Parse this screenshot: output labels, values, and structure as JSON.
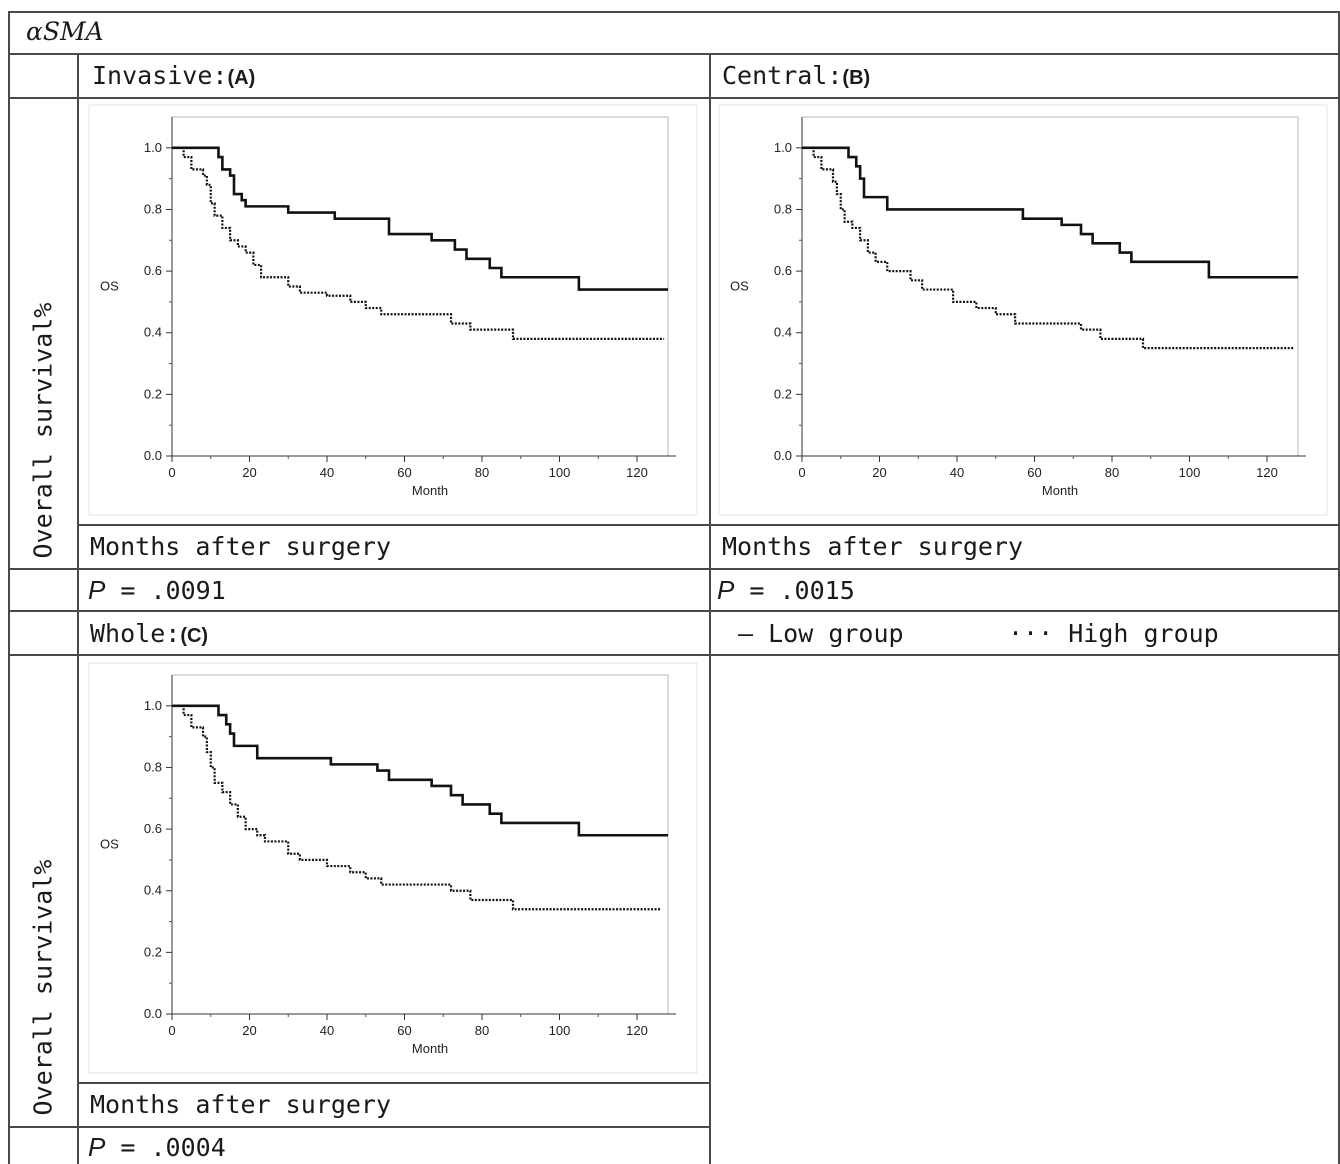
{
  "header": {
    "marker": "αSMA"
  },
  "panels": {
    "a": {
      "region": "Invasive:",
      "letter": "(A)",
      "xcaption": "Months after surgery",
      "p_prefix": "P",
      "p_value": "= .0091"
    },
    "b": {
      "region": "Central:",
      "letter": "(B)",
      "xcaption": "Months after surgery",
      "p_prefix": "P",
      "p_value": "= .0015"
    },
    "c": {
      "region": "Whole:",
      "letter": "(C)",
      "xcaption": "Months after surgery",
      "p_prefix": "P",
      "p_value": "= .0004"
    }
  },
  "row_label": "Overall survival%",
  "legend": {
    "low_symbol": "—",
    "low_label": "Low group",
    "high_symbol": "···",
    "high_label": "High group"
  },
  "chart_data": [
    {
      "type": "line",
      "panel": "A",
      "xlabel": "Month",
      "ylabel": "OS",
      "xlim": [
        0,
        128
      ],
      "ylim": [
        0,
        1.1
      ],
      "xticks": [
        0,
        20,
        40,
        60,
        80,
        100,
        120
      ],
      "yticks": [
        "0.0",
        "0.2",
        "0.4",
        "0.6",
        "0.8",
        "1.0"
      ],
      "series": [
        {
          "style": "solid",
          "values": [
            [
              0,
              1.0
            ],
            [
              11,
              1.0
            ],
            [
              12,
              0.97
            ],
            [
              13,
              0.93
            ],
            [
              15,
              0.91
            ],
            [
              16,
              0.85
            ],
            [
              18,
              0.83
            ],
            [
              19,
              0.81
            ],
            [
              30,
              0.79
            ],
            [
              42,
              0.77
            ],
            [
              56,
              0.72
            ],
            [
              67,
              0.7
            ],
            [
              73,
              0.67
            ],
            [
              76,
              0.64
            ],
            [
              82,
              0.61
            ],
            [
              85,
              0.58
            ],
            [
              105,
              0.54
            ],
            [
              128,
              0.54
            ]
          ]
        },
        {
          "style": "dotted",
          "values": [
            [
              0,
              1.0
            ],
            [
              3,
              0.97
            ],
            [
              5,
              0.93
            ],
            [
              8,
              0.91
            ],
            [
              9,
              0.88
            ],
            [
              10,
              0.82
            ],
            [
              11,
              0.78
            ],
            [
              13,
              0.74
            ],
            [
              15,
              0.7
            ],
            [
              17,
              0.68
            ],
            [
              19,
              0.66
            ],
            [
              21,
              0.62
            ],
            [
              23,
              0.58
            ],
            [
              30,
              0.55
            ],
            [
              33,
              0.53
            ],
            [
              40,
              0.52
            ],
            [
              46,
              0.5
            ],
            [
              50,
              0.48
            ],
            [
              54,
              0.46
            ],
            [
              72,
              0.43
            ],
            [
              77,
              0.41
            ],
            [
              88,
              0.38
            ],
            [
              127,
              0.38
            ]
          ]
        }
      ]
    },
    {
      "type": "line",
      "panel": "B",
      "xlabel": "Month",
      "ylabel": "OS",
      "xlim": [
        0,
        128
      ],
      "ylim": [
        0,
        1.1
      ],
      "xticks": [
        0,
        20,
        40,
        60,
        80,
        100,
        120
      ],
      "yticks": [
        "0.0",
        "0.2",
        "0.4",
        "0.6",
        "0.8",
        "1.0"
      ],
      "series": [
        {
          "style": "solid",
          "values": [
            [
              0,
              1.0
            ],
            [
              11,
              1.0
            ],
            [
              12,
              0.97
            ],
            [
              14,
              0.94
            ],
            [
              15,
              0.9
            ],
            [
              16,
              0.84
            ],
            [
              22,
              0.8
            ],
            [
              57,
              0.77
            ],
            [
              67,
              0.75
            ],
            [
              72,
              0.72
            ],
            [
              75,
              0.69
            ],
            [
              82,
              0.66
            ],
            [
              85,
              0.63
            ],
            [
              105,
              0.58
            ],
            [
              128,
              0.58
            ]
          ]
        },
        {
          "style": "dotted",
          "values": [
            [
              0,
              1.0
            ],
            [
              3,
              0.97
            ],
            [
              5,
              0.93
            ],
            [
              8,
              0.89
            ],
            [
              9,
              0.85
            ],
            [
              10,
              0.8
            ],
            [
              11,
              0.76
            ],
            [
              13,
              0.74
            ],
            [
              15,
              0.7
            ],
            [
              17,
              0.66
            ],
            [
              19,
              0.63
            ],
            [
              22,
              0.6
            ],
            [
              28,
              0.57
            ],
            [
              31,
              0.54
            ],
            [
              39,
              0.5
            ],
            [
              45,
              0.48
            ],
            [
              50,
              0.46
            ],
            [
              55,
              0.43
            ],
            [
              72,
              0.41
            ],
            [
              77,
              0.38
            ],
            [
              88,
              0.35
            ],
            [
              127,
              0.35
            ]
          ]
        }
      ]
    },
    {
      "type": "line",
      "panel": "C",
      "xlabel": "Month",
      "ylabel": "OS",
      "xlim": [
        0,
        128
      ],
      "ylim": [
        0,
        1.1
      ],
      "xticks": [
        0,
        20,
        40,
        60,
        80,
        100,
        120
      ],
      "yticks": [
        "0.0",
        "0.2",
        "0.4",
        "0.6",
        "0.8",
        "1.0"
      ],
      "series": [
        {
          "style": "solid",
          "values": [
            [
              0,
              1.0
            ],
            [
              11,
              1.0
            ],
            [
              12,
              0.97
            ],
            [
              14,
              0.94
            ],
            [
              15,
              0.91
            ],
            [
              16,
              0.87
            ],
            [
              22,
              0.83
            ],
            [
              41,
              0.81
            ],
            [
              53,
              0.79
            ],
            [
              56,
              0.76
            ],
            [
              67,
              0.74
            ],
            [
              72,
              0.71
            ],
            [
              75,
              0.68
            ],
            [
              82,
              0.65
            ],
            [
              85,
              0.62
            ],
            [
              105,
              0.58
            ],
            [
              128,
              0.58
            ]
          ]
        },
        {
          "style": "dotted",
          "values": [
            [
              0,
              1.0
            ],
            [
              3,
              0.97
            ],
            [
              5,
              0.93
            ],
            [
              8,
              0.9
            ],
            [
              9,
              0.85
            ],
            [
              10,
              0.8
            ],
            [
              11,
              0.75
            ],
            [
              13,
              0.72
            ],
            [
              15,
              0.68
            ],
            [
              17,
              0.64
            ],
            [
              19,
              0.6
            ],
            [
              22,
              0.58
            ],
            [
              24,
              0.56
            ],
            [
              30,
              0.52
            ],
            [
              33,
              0.5
            ],
            [
              40,
              0.48
            ],
            [
              46,
              0.46
            ],
            [
              50,
              0.44
            ],
            [
              54,
              0.42
            ],
            [
              72,
              0.4
            ],
            [
              77,
              0.37
            ],
            [
              88,
              0.34
            ],
            [
              126,
              0.34
            ]
          ]
        }
      ]
    }
  ]
}
